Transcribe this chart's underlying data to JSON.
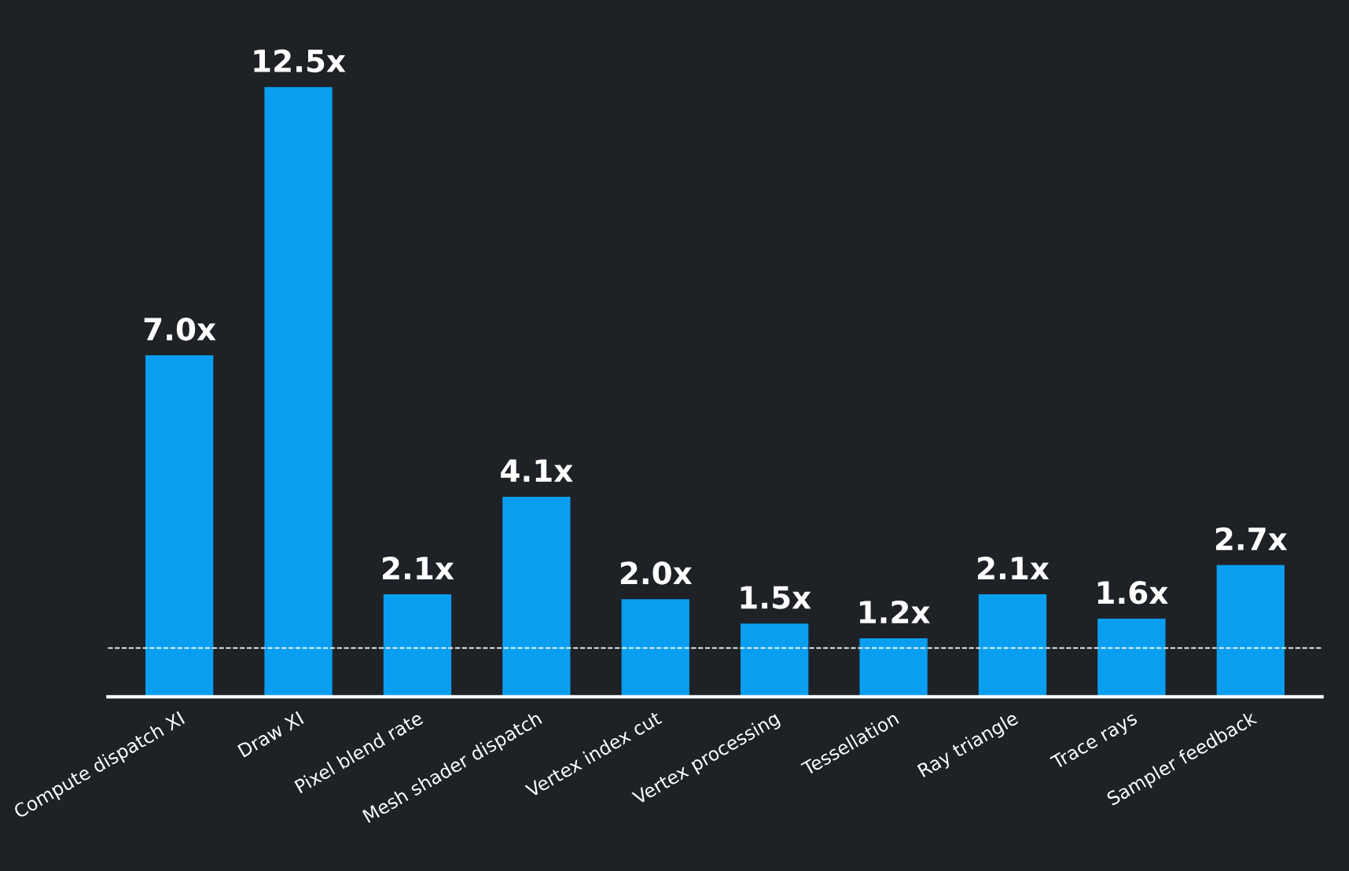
{
  "chart_data": {
    "type": "bar",
    "categories": [
      "Compute dispatch XI",
      "Draw XI",
      "Pixel blend rate",
      "Mesh shader dispatch",
      "Vertex index cut",
      "Vertex processing",
      "Tessellation",
      "Ray triangle",
      "Trace rays",
      "Sampler feedback"
    ],
    "values": [
      7.0,
      12.5,
      2.1,
      4.1,
      2.0,
      1.5,
      1.2,
      2.1,
      1.6,
      2.7
    ],
    "value_labels": [
      "7.0x",
      "12.5x",
      "2.1x",
      "4.1x",
      "2.0x",
      "1.5x",
      "1.2x",
      "2.1x",
      "1.6x",
      "2.7x"
    ],
    "color": "#0a9ef0",
    "grid": false,
    "ref_lines": [
      {
        "axis": "y",
        "value": 1,
        "color": "#ffffff",
        "line_style": "dashed"
      }
    ]
  }
}
